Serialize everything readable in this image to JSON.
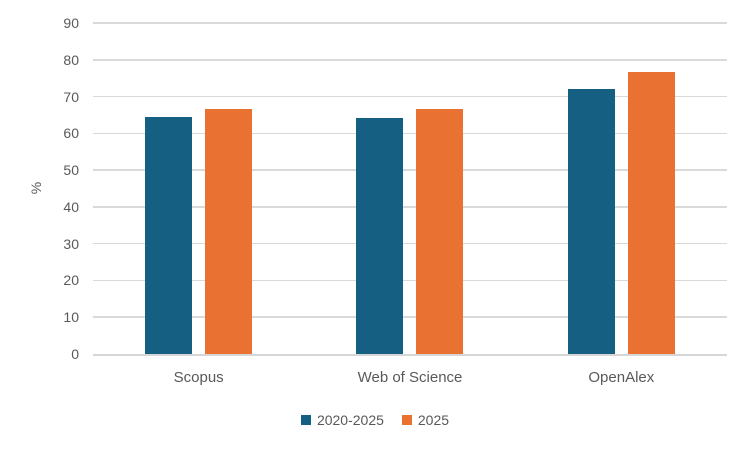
{
  "chart_data": {
    "type": "bar",
    "title": "",
    "categories": [
      "Scopus",
      "Web of Science",
      "OpenAlex"
    ],
    "series": [
      {
        "name": "2020-2025",
        "color": "#156082",
        "values": [
          64.5,
          64.3,
          72.0
        ]
      },
      {
        "name": "2025",
        "color": "#E97132",
        "values": [
          66.5,
          66.7,
          76.6
        ]
      }
    ],
    "xlabel": "",
    "ylabel": "%",
    "ylim": [
      0,
      90
    ],
    "yticks": [
      0,
      10,
      20,
      30,
      40,
      50,
      60,
      70,
      80,
      90
    ],
    "grid": true,
    "legend_position": "bottom"
  },
  "theme": {
    "background_color": "#FFFFFF",
    "text_color": "#595959",
    "gridline_color": "#D9D9D9",
    "axis_line_color": "#D6D6D6"
  }
}
